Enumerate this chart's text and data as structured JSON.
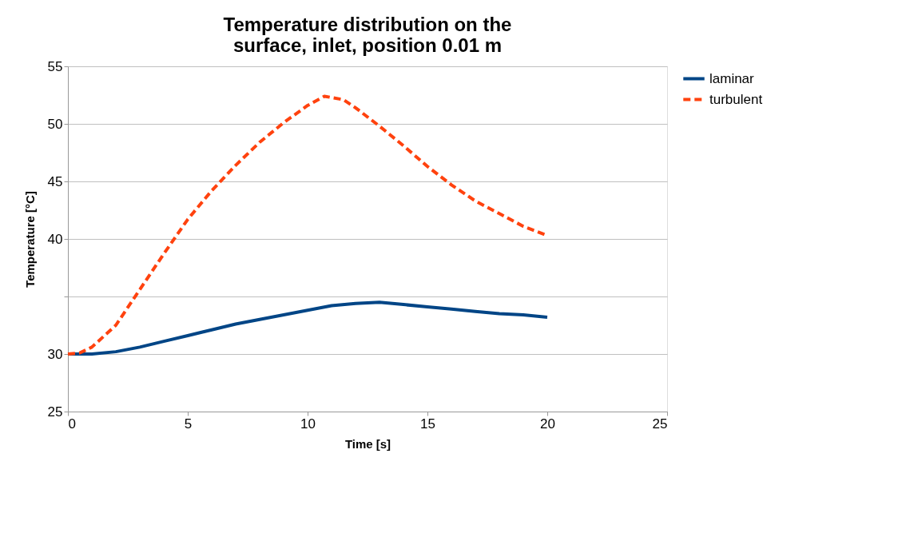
{
  "chart_data": {
    "type": "line",
    "title": "Temperature distribution on the surface, inlet, position 0.01 m",
    "xlabel": "Time [s]",
    "ylabel": "Temperature [°C]",
    "xlim": [
      0,
      25
    ],
    "xticks": [
      0,
      5,
      10,
      15,
      20,
      25
    ],
    "ylim": [
      25,
      55
    ],
    "yticks": [
      25,
      30,
      {
        "value": 35,
        "label": null
      },
      40,
      45,
      50,
      55
    ],
    "grid": "y",
    "legend": "right",
    "marker": "none",
    "series": [
      {
        "name": "laminar",
        "color": "#004586",
        "line_style": "solid",
        "x": [
          0,
          1,
          2,
          3,
          4,
          5,
          6,
          7,
          8,
          9,
          10,
          11,
          12,
          13,
          14,
          15,
          16,
          17,
          18,
          19,
          20
        ],
        "values": [
          30,
          30.0,
          30.2,
          30.6,
          31.1,
          31.6,
          32.1,
          32.6,
          33.0,
          33.4,
          33.8,
          34.2,
          34.4,
          34.5,
          34.3,
          34.1,
          33.9,
          33.7,
          33.5,
          33.4,
          33.2
        ]
      },
      {
        "name": "turbulent",
        "color": "#ff420e",
        "line_style": "dashed",
        "x": [
          0,
          0.5,
          1,
          2,
          3,
          4,
          5,
          6,
          7,
          8,
          9,
          10,
          10.7,
          11.5,
          12,
          13,
          14,
          15,
          16,
          17,
          18,
          19,
          20
        ],
        "values": [
          30,
          30.1,
          30.6,
          32.5,
          35.6,
          38.7,
          41.7,
          44.2,
          46.4,
          48.4,
          50.1,
          51.6,
          52.4,
          52.1,
          51.4,
          49.8,
          48.1,
          46.3,
          44.7,
          43.3,
          42.2,
          41.1,
          40.3
        ]
      }
    ]
  }
}
